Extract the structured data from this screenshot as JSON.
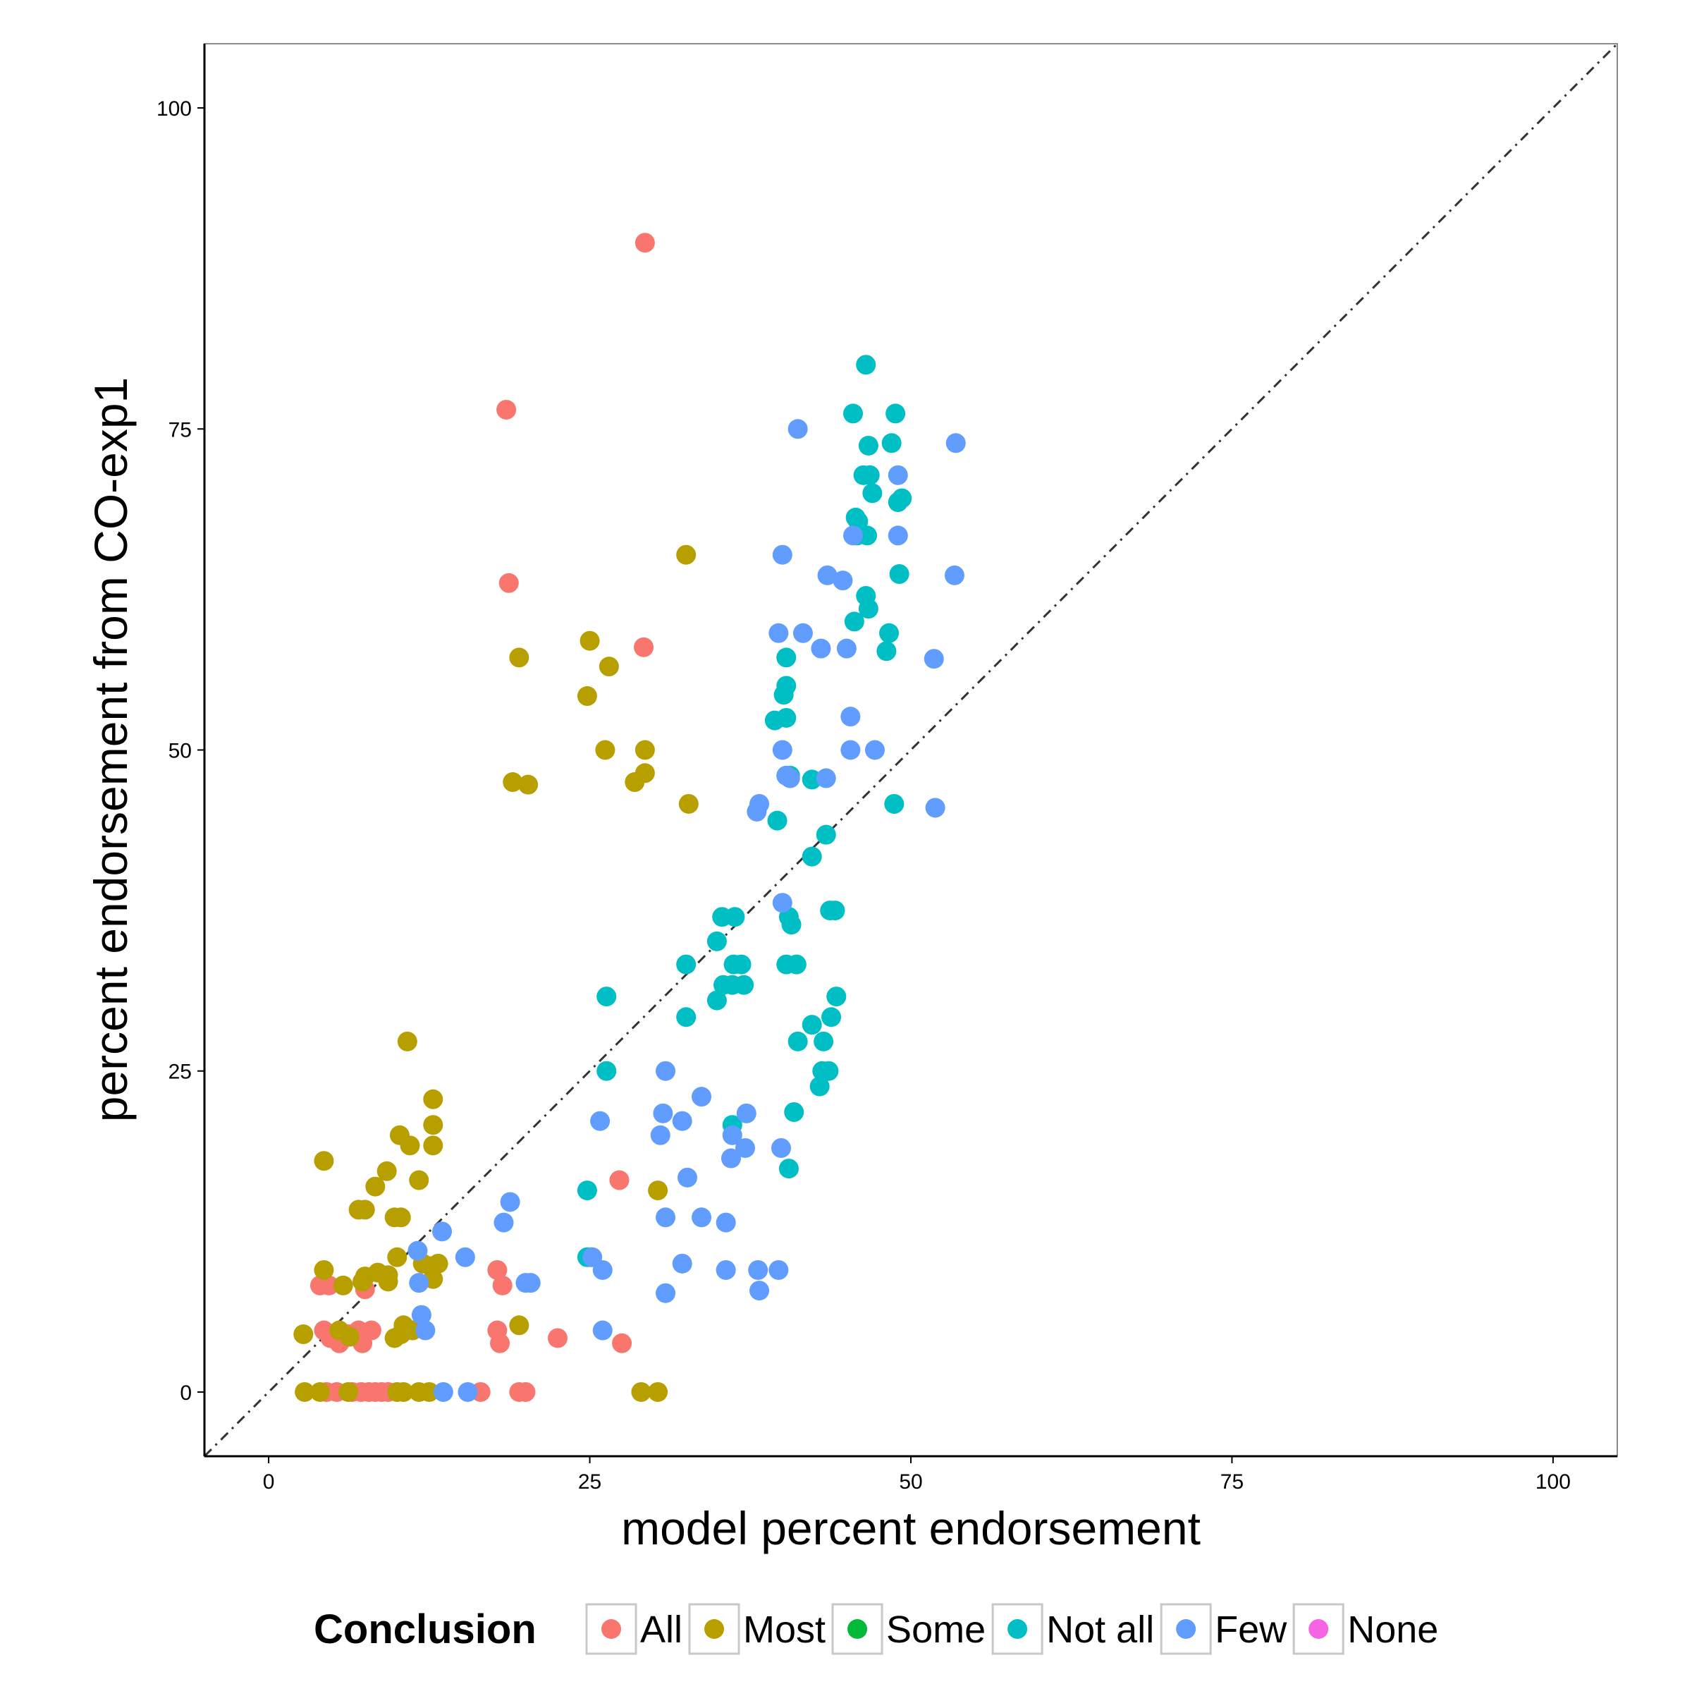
{
  "chart_data": {
    "type": "scatter",
    "xlabel": "model percent endorsement",
    "ylabel": "percent endorsement from CO-exp1",
    "xlim": [
      -5,
      105
    ],
    "ylim": [
      -5,
      105
    ],
    "x_ticks": [
      0,
      25,
      50,
      75,
      100
    ],
    "y_ticks": [
      0,
      25,
      50,
      75,
      100
    ],
    "grid": false,
    "reference_line": {
      "style": "dash-dot",
      "slope": 1,
      "intercept": 0
    },
    "legend": {
      "title": "Conclusion",
      "placement": "bottom",
      "entries": [
        {
          "name": "All",
          "color": "#F8766D"
        },
        {
          "name": "Most",
          "color": "#B79F00"
        },
        {
          "name": "Some",
          "color": "#00BA38"
        },
        {
          "name": "Not all",
          "color": "#00BFC4"
        },
        {
          "name": "Few",
          "color": "#619CFF"
        },
        {
          "name": "None",
          "color": "#F564E3"
        }
      ]
    },
    "series": [
      {
        "name": "All",
        "color": "#F8766D",
        "points": [
          [
            29.3,
            89.5
          ],
          [
            18.5,
            76.5
          ],
          [
            18.7,
            63
          ],
          [
            29.2,
            58
          ],
          [
            27.3,
            16.5
          ],
          [
            17.8,
            9.5
          ],
          [
            18.2,
            8.3
          ],
          [
            4,
            8.3
          ],
          [
            4.7,
            8.3
          ],
          [
            7.5,
            8
          ],
          [
            4.3,
            4.8
          ],
          [
            4.8,
            4.2
          ],
          [
            5.5,
            3.8
          ],
          [
            6.2,
            4.5
          ],
          [
            7,
            4.8
          ],
          [
            7.3,
            3.8
          ],
          [
            8,
            4.8
          ],
          [
            17.8,
            4.8
          ],
          [
            18,
            3.8
          ],
          [
            22.5,
            4.2
          ],
          [
            27.5,
            3.8
          ],
          [
            4.5,
            0
          ],
          [
            5.3,
            0
          ],
          [
            6.5,
            0
          ],
          [
            7.2,
            0
          ],
          [
            7.8,
            0
          ],
          [
            8.3,
            0
          ],
          [
            8.8,
            0
          ],
          [
            9.3,
            0
          ],
          [
            16.5,
            0
          ],
          [
            19.5,
            0
          ],
          [
            20,
            0
          ]
        ]
      },
      {
        "name": "Most",
        "color": "#B79F00",
        "points": [
          [
            32.5,
            65.2
          ],
          [
            25,
            58.5
          ],
          [
            19.5,
            57.2
          ],
          [
            26.5,
            56.5
          ],
          [
            24.8,
            54.2
          ],
          [
            26.2,
            50
          ],
          [
            29.3,
            50
          ],
          [
            19,
            47.5
          ],
          [
            20.2,
            47.3
          ],
          [
            28.5,
            47.5
          ],
          [
            29.3,
            48.2
          ],
          [
            32.7,
            45.8
          ],
          [
            10.8,
            27.3
          ],
          [
            12.8,
            22.8
          ],
          [
            12.8,
            20.8
          ],
          [
            10.2,
            20
          ],
          [
            11,
            19.2
          ],
          [
            12.8,
            19.2
          ],
          [
            4.3,
            18
          ],
          [
            9.2,
            17.2
          ],
          [
            11.7,
            16.5
          ],
          [
            8.3,
            16
          ],
          [
            30.3,
            15.7
          ],
          [
            7,
            14.2
          ],
          [
            7.5,
            14.2
          ],
          [
            9.8,
            13.6
          ],
          [
            10.3,
            13.6
          ],
          [
            12,
            10
          ],
          [
            13.2,
            10
          ],
          [
            12.6,
            9.8
          ],
          [
            10,
            10.5
          ],
          [
            4.3,
            9.5
          ],
          [
            7.5,
            9
          ],
          [
            8.5,
            9.3
          ],
          [
            9.3,
            9.1
          ],
          [
            9.3,
            8.6
          ],
          [
            7.3,
            8.6
          ],
          [
            5.8,
            8.3
          ],
          [
            12.8,
            8.8
          ],
          [
            2.7,
            4.5
          ],
          [
            5.5,
            4.8
          ],
          [
            6.3,
            4.3
          ],
          [
            10.5,
            5.2
          ],
          [
            11.2,
            4.8
          ],
          [
            10.3,
            4.5
          ],
          [
            9.8,
            4.2
          ],
          [
            19.5,
            5.2
          ],
          [
            2.8,
            0
          ],
          [
            4,
            0
          ],
          [
            6.2,
            0
          ],
          [
            10,
            0
          ],
          [
            10.5,
            0
          ],
          [
            11.7,
            0
          ],
          [
            12.5,
            0
          ],
          [
            29,
            0
          ],
          [
            30.3,
            0
          ]
        ]
      },
      {
        "name": "Some",
        "color": "#00BA38",
        "points": []
      },
      {
        "name": "Not all",
        "color": "#00BFC4",
        "points": [
          [
            46.5,
            80
          ],
          [
            45.5,
            76.2
          ],
          [
            48.8,
            76.2
          ],
          [
            46.7,
            73.7
          ],
          [
            48.5,
            73.9
          ],
          [
            46.3,
            71.4
          ],
          [
            46.8,
            71.4
          ],
          [
            49,
            69.3
          ],
          [
            49.3,
            69.6
          ],
          [
            47,
            70
          ],
          [
            45.7,
            68.1
          ],
          [
            45.9,
            67.8
          ],
          [
            45.8,
            66.7
          ],
          [
            46.6,
            66.7
          ],
          [
            49.1,
            63.7
          ],
          [
            46.5,
            62
          ],
          [
            46.7,
            61
          ],
          [
            45.6,
            60
          ],
          [
            48.3,
            59.1
          ],
          [
            48.1,
            57.7
          ],
          [
            40.3,
            57.2
          ],
          [
            40.3,
            55
          ],
          [
            40.1,
            54.3
          ],
          [
            39.4,
            52.3
          ],
          [
            40.3,
            52.5
          ],
          [
            40.3,
            48
          ],
          [
            40.6,
            48
          ],
          [
            42.3,
            47.7
          ],
          [
            48.7,
            45.8
          ],
          [
            39.6,
            44.5
          ],
          [
            43.4,
            43.4
          ],
          [
            42.3,
            41.7
          ],
          [
            35.3,
            37
          ],
          [
            36.3,
            37
          ],
          [
            43.7,
            37.5
          ],
          [
            44.1,
            37.5
          ],
          [
            40.5,
            37
          ],
          [
            40.7,
            36.4
          ],
          [
            34.9,
            35.1
          ],
          [
            32.5,
            33.3
          ],
          [
            36.2,
            33.3
          ],
          [
            36.8,
            33.3
          ],
          [
            40.3,
            33.3
          ],
          [
            41.1,
            33.3
          ],
          [
            35.4,
            31.7
          ],
          [
            36.1,
            31.7
          ],
          [
            37,
            31.7
          ],
          [
            26.3,
            30.8
          ],
          [
            34.9,
            30.5
          ],
          [
            44.2,
            30.8
          ],
          [
            32.5,
            29.2
          ],
          [
            42.3,
            28.6
          ],
          [
            43.8,
            29.2
          ],
          [
            41.2,
            27.3
          ],
          [
            43.2,
            27.3
          ],
          [
            26.3,
            25
          ],
          [
            43.1,
            25
          ],
          [
            43.6,
            25
          ],
          [
            42.9,
            23.8
          ],
          [
            36.1,
            20.8
          ],
          [
            40.9,
            21.8
          ],
          [
            40.5,
            17.4
          ],
          [
            24.8,
            15.7
          ],
          [
            24.8,
            10.5
          ],
          [
            25.1,
            10.5
          ]
        ]
      },
      {
        "name": "Few",
        "color": "#619CFF",
        "points": [
          [
            41.2,
            75
          ],
          [
            53.5,
            73.9
          ],
          [
            49,
            71.4
          ],
          [
            49,
            66.7
          ],
          [
            45.5,
            66.7
          ],
          [
            40,
            65.2
          ],
          [
            43.5,
            63.6
          ],
          [
            44.7,
            63.2
          ],
          [
            53.4,
            63.6
          ],
          [
            39.7,
            59.1
          ],
          [
            41.6,
            59.1
          ],
          [
            43,
            57.9
          ],
          [
            45,
            57.9
          ],
          [
            51.8,
            57.1
          ],
          [
            45.3,
            52.6
          ],
          [
            40,
            50
          ],
          [
            45.3,
            50
          ],
          [
            47.2,
            50
          ],
          [
            40.3,
            48
          ],
          [
            40.6,
            47.8
          ],
          [
            43.4,
            47.8
          ],
          [
            38.2,
            45.8
          ],
          [
            38,
            45.2
          ],
          [
            51.9,
            45.5
          ],
          [
            40,
            38.1
          ],
          [
            30.9,
            25
          ],
          [
            33.7,
            23
          ],
          [
            30.7,
            21.7
          ],
          [
            32.2,
            21.1
          ],
          [
            37.2,
            21.7
          ],
          [
            25.8,
            21.1
          ],
          [
            30.5,
            20
          ],
          [
            36.1,
            20
          ],
          [
            39.9,
            19
          ],
          [
            37.1,
            19
          ],
          [
            36,
            18.2
          ],
          [
            32.6,
            16.7
          ],
          [
            18.8,
            14.8
          ],
          [
            18.3,
            13.2
          ],
          [
            30.9,
            13.6
          ],
          [
            33.7,
            13.6
          ],
          [
            35.6,
            13.2
          ],
          [
            13.5,
            12.5
          ],
          [
            11.6,
            11
          ],
          [
            15.3,
            10.5
          ],
          [
            25.2,
            10.5
          ],
          [
            32.2,
            10
          ],
          [
            20,
            8.5
          ],
          [
            20.4,
            8.5
          ],
          [
            11.7,
            8.5
          ],
          [
            26,
            9.5
          ],
          [
            35.6,
            9.5
          ],
          [
            38.1,
            9.5
          ],
          [
            39.7,
            9.5
          ],
          [
            30.9,
            7.7
          ],
          [
            38.2,
            7.9
          ],
          [
            11.9,
            6
          ],
          [
            12.2,
            4.8
          ],
          [
            26,
            4.8
          ],
          [
            13.6,
            0
          ],
          [
            15.5,
            0
          ]
        ]
      },
      {
        "name": "None",
        "color": "#F564E3",
        "points": []
      }
    ]
  }
}
